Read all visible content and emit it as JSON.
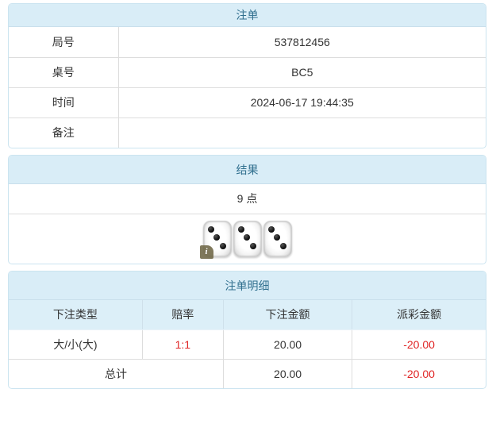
{
  "colors": {
    "heading_bg": "#d9edf7",
    "heading_text": "#31708f",
    "panel_border": "#cbe4f0",
    "row_border": "#dddddd",
    "body_text": "#333333",
    "negative_red": "#e02626",
    "table_head_bg": "#dceff8"
  },
  "bet_panel": {
    "title": "注单",
    "rows": [
      {
        "label": "局号",
        "value": "537812456"
      },
      {
        "label": "桌号",
        "value": "BC5"
      },
      {
        "label": "时间",
        "value": "2024-06-17 19:44:35"
      },
      {
        "label": "备注",
        "value": ""
      }
    ]
  },
  "result_panel": {
    "title": "结果",
    "points": "9 点",
    "dice": [
      3,
      3,
      3
    ],
    "info_badge": "i"
  },
  "detail_panel": {
    "title": "注单明细",
    "columns": [
      "下注类型",
      "赔率",
      "下注金额",
      "派彩金额"
    ],
    "rows": [
      {
        "bet_type": "大/小(大)",
        "odds": "1:1",
        "bet_amount": "20.00",
        "payout_amount": "-20.00"
      }
    ],
    "total": {
      "label": "总计",
      "bet_amount": "20.00",
      "payout_amount": "-20.00"
    }
  }
}
